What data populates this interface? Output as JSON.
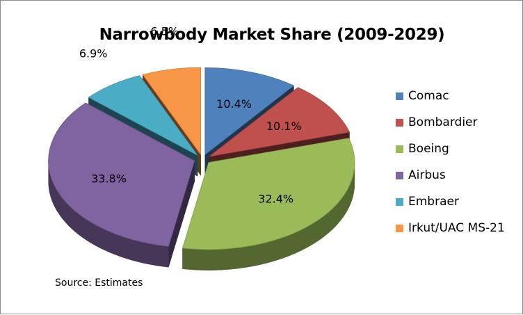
{
  "chart_data": {
    "type": "pie",
    "title": "Narrowbody Market Share (2009-2029)",
    "source_note": "Source: Estimates",
    "legend_position": "right",
    "style": "3d-exploded",
    "slices": [
      {
        "name": "Comac",
        "value": 10.4,
        "label": "10.4%",
        "color": "#4f81bd"
      },
      {
        "name": "Bombardier",
        "value": 10.1,
        "label": "10.1%",
        "color": "#c0504d"
      },
      {
        "name": "Boeing",
        "value": 32.4,
        "label": "32.4%",
        "color": "#9bbb59"
      },
      {
        "name": "Airbus",
        "value": 33.8,
        "label": "33.8%",
        "color": "#8064a2"
      },
      {
        "name": "Embraer",
        "value": 6.9,
        "label": "6.9%",
        "color": "#4bacc6"
      },
      {
        "name": "Irkut/UAC MS-21",
        "value": 6.5,
        "label": "6.5%",
        "color": "#f79646"
      }
    ]
  }
}
